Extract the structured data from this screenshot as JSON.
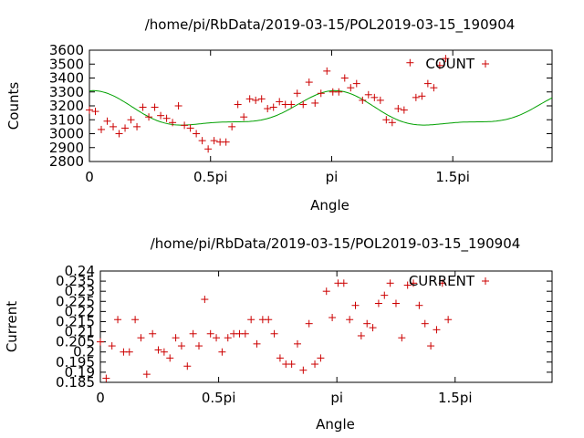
{
  "chart_data": [
    {
      "type": "scatter",
      "title": "/home/pi/RbData/2019-03-15/POL2019-03-15_190904",
      "xlabel": "Angle",
      "ylabel": "Counts",
      "xlim": [
        0,
        6.0
      ],
      "ylim": [
        2800,
        3600
      ],
      "xticks": [
        {
          "v": 0,
          "label": "0"
        },
        {
          "v": 1.5708,
          "label": "0.5pi"
        },
        {
          "v": 3.1416,
          "label": "pi"
        },
        {
          "v": 4.7124,
          "label": "1.5pi"
        }
      ],
      "yticks": [
        2800,
        2900,
        3000,
        3100,
        3200,
        3300,
        3400,
        3500,
        3600
      ],
      "legend": "COUNT",
      "points": [
        [
          0.0,
          3170
        ],
        [
          0.077,
          3160
        ],
        [
          0.154,
          3030
        ],
        [
          0.231,
          3090
        ],
        [
          0.308,
          3050
        ],
        [
          0.385,
          3000
        ],
        [
          0.462,
          3040
        ],
        [
          0.539,
          3100
        ],
        [
          0.616,
          3050
        ],
        [
          0.693,
          3190
        ],
        [
          0.77,
          3120
        ],
        [
          0.847,
          3190
        ],
        [
          0.924,
          3130
        ],
        [
          1.001,
          3110
        ],
        [
          1.078,
          3080
        ],
        [
          1.155,
          3200
        ],
        [
          1.232,
          3060
        ],
        [
          1.309,
          3040
        ],
        [
          1.386,
          3000
        ],
        [
          1.463,
          2950
        ],
        [
          1.54,
          2890
        ],
        [
          1.617,
          2950
        ],
        [
          1.694,
          2940
        ],
        [
          1.771,
          2940
        ],
        [
          1.848,
          3050
        ],
        [
          1.925,
          3210
        ],
        [
          2.002,
          3120
        ],
        [
          2.079,
          3250
        ],
        [
          2.156,
          3240
        ],
        [
          2.233,
          3250
        ],
        [
          2.31,
          3180
        ],
        [
          2.387,
          3190
        ],
        [
          2.464,
          3230
        ],
        [
          2.541,
          3210
        ],
        [
          2.618,
          3210
        ],
        [
          2.695,
          3290
        ],
        [
          2.772,
          3210
        ],
        [
          2.849,
          3370
        ],
        [
          2.926,
          3220
        ],
        [
          3.003,
          3290
        ],
        [
          3.08,
          3450
        ],
        [
          3.157,
          3300
        ],
        [
          3.234,
          3300
        ],
        [
          3.311,
          3400
        ],
        [
          3.388,
          3330
        ],
        [
          3.465,
          3360
        ],
        [
          3.542,
          3240
        ],
        [
          3.619,
          3280
        ],
        [
          3.696,
          3260
        ],
        [
          3.773,
          3240
        ],
        [
          3.85,
          3100
        ],
        [
          3.927,
          3080
        ],
        [
          4.004,
          3180
        ],
        [
          4.081,
          3170
        ],
        [
          4.158,
          3510
        ],
        [
          4.235,
          3260
        ],
        [
          4.312,
          3270
        ],
        [
          4.389,
          3360
        ],
        [
          4.466,
          3330
        ],
        [
          4.543,
          3490
        ],
        [
          4.62,
          3540
        ]
      ],
      "fit_curve": {
        "color": "#00a000"
      }
    },
    {
      "type": "scatter",
      "title": "/home/pi/RbData/2019-03-15/POL2019-03-15_190904",
      "xlabel": "Angle",
      "ylabel": "Current",
      "xlim": [
        0,
        6.0
      ],
      "ylim": [
        0.185,
        0.24
      ],
      "xticks": [
        {
          "v": 0,
          "label": "0"
        },
        {
          "v": 1.5708,
          "label": "0.5pi"
        },
        {
          "v": 3.1416,
          "label": "pi"
        },
        {
          "v": 4.7124,
          "label": "1.5pi"
        }
      ],
      "yticks": [
        {
          "v": 0.185,
          "label": "0.185"
        },
        {
          "v": 0.19,
          "label": "0.19"
        },
        {
          "v": 0.195,
          "label": "0.195"
        },
        {
          "v": 0.2,
          "label": "0.2"
        },
        {
          "v": 0.205,
          "label": "0.205"
        },
        {
          "v": 0.21,
          "label": "0.21"
        },
        {
          "v": 0.215,
          "label": "0.215"
        },
        {
          "v": 0.22,
          "label": "0.22"
        },
        {
          "v": 0.225,
          "label": "0.225"
        },
        {
          "v": 0.23,
          "label": "0.23"
        },
        {
          "v": 0.235,
          "label": "0.235"
        },
        {
          "v": 0.24,
          "label": "0.24"
        }
      ],
      "legend": "CURRENT",
      "points": [
        [
          0.0,
          0.205
        ],
        [
          0.077,
          0.187
        ],
        [
          0.154,
          0.203
        ],
        [
          0.231,
          0.216
        ],
        [
          0.308,
          0.2
        ],
        [
          0.385,
          0.2
        ],
        [
          0.462,
          0.216
        ],
        [
          0.539,
          0.207
        ],
        [
          0.616,
          0.189
        ],
        [
          0.693,
          0.209
        ],
        [
          0.77,
          0.201
        ],
        [
          0.847,
          0.2
        ],
        [
          0.924,
          0.197
        ],
        [
          1.001,
          0.207
        ],
        [
          1.078,
          0.203
        ],
        [
          1.155,
          0.193
        ],
        [
          1.232,
          0.209
        ],
        [
          1.309,
          0.203
        ],
        [
          1.386,
          0.226
        ],
        [
          1.463,
          0.209
        ],
        [
          1.54,
          0.207
        ],
        [
          1.617,
          0.2
        ],
        [
          1.694,
          0.207
        ],
        [
          1.771,
          0.209
        ],
        [
          1.848,
          0.209
        ],
        [
          1.925,
          0.209
        ],
        [
          2.002,
          0.216
        ],
        [
          2.079,
          0.204
        ],
        [
          2.156,
          0.216
        ],
        [
          2.233,
          0.216
        ],
        [
          2.31,
          0.209
        ],
        [
          2.387,
          0.197
        ],
        [
          2.464,
          0.194
        ],
        [
          2.541,
          0.194
        ],
        [
          2.618,
          0.204
        ],
        [
          2.695,
          0.191
        ],
        [
          2.772,
          0.214
        ],
        [
          2.849,
          0.194
        ],
        [
          2.926,
          0.197
        ],
        [
          3.003,
          0.23
        ],
        [
          3.08,
          0.217
        ],
        [
          3.157,
          0.234
        ],
        [
          3.234,
          0.234
        ],
        [
          3.311,
          0.216
        ],
        [
          3.388,
          0.223
        ],
        [
          3.465,
          0.208
        ],
        [
          3.542,
          0.214
        ],
        [
          3.619,
          0.212
        ],
        [
          3.696,
          0.224
        ],
        [
          3.773,
          0.228
        ],
        [
          3.85,
          0.234
        ],
        [
          3.927,
          0.224
        ],
        [
          4.004,
          0.207
        ],
        [
          4.081,
          0.233
        ],
        [
          4.158,
          0.234
        ],
        [
          4.235,
          0.223
        ],
        [
          4.312,
          0.214
        ],
        [
          4.389,
          0.203
        ],
        [
          4.466,
          0.211
        ],
        [
          4.543,
          0.234
        ],
        [
          4.62,
          0.216
        ]
      ]
    }
  ]
}
